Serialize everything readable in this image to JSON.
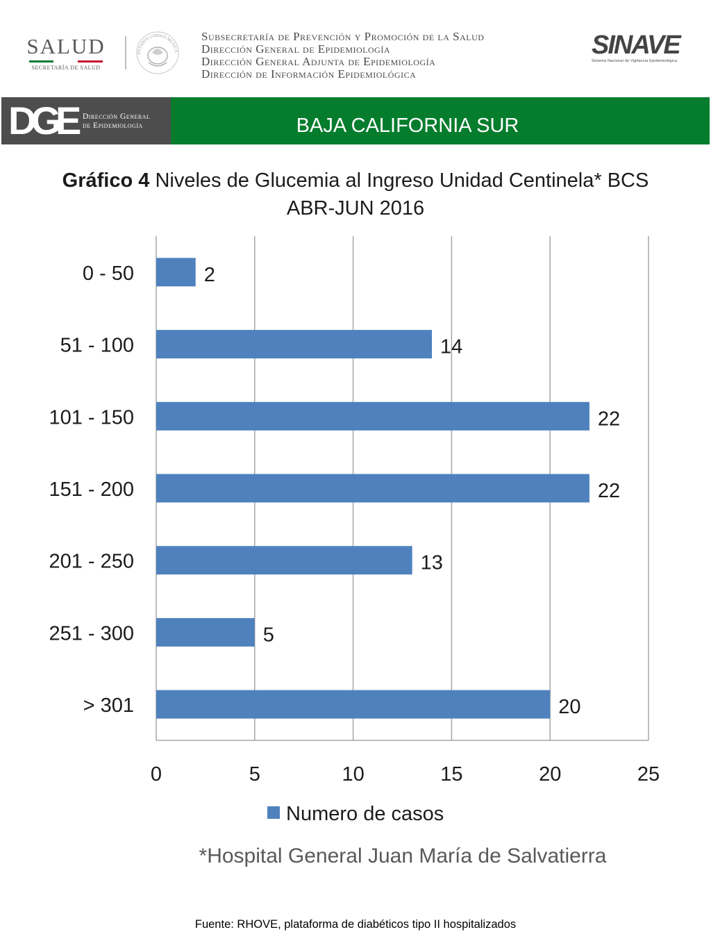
{
  "header": {
    "salud_word": "SALUD",
    "salud_sub": "SECRETARÍA DE SALUD",
    "seal_text": "ESTADOS UNIDOS MEXICANOS",
    "lines": [
      "Subsecretaría de Prevención y Promoción de la Salud",
      "Dirección General de Epidemiología",
      "Dirección General Adjunta de Epidemiología",
      "Dirección de Información Epidemiológica"
    ],
    "sinave_word": "SINAVE",
    "sinave_sub": "Sistema Nacional de Vigilancia Epidemiológica"
  },
  "banner": {
    "dge_mark": "DGE",
    "dge_line1": "Dirección General",
    "dge_line2": "de Epidemiología",
    "region": "BAJA CALIFORNIA SUR",
    "green": "#067d2d",
    "dark": "#4d4d4d"
  },
  "chart_title": {
    "bold": "Gráfico 4",
    "rest": " Niveles de Glucemia al Ingreso Unidad Centinela* BCS",
    "line2": "ABR-JUN 2016"
  },
  "chart_data": {
    "type": "bar",
    "orientation": "horizontal",
    "categories": [
      "0 - 50",
      "51 - 100",
      "101 - 150",
      "151 - 200",
      "201 - 250",
      "251 - 300",
      "> 301"
    ],
    "series": [
      {
        "name": "Numero de casos",
        "values": [
          2,
          14,
          22,
          22,
          13,
          5,
          20
        ],
        "color": "#4f81bd"
      }
    ],
    "xlim": [
      0,
      25
    ],
    "xticks": [
      0,
      5,
      10,
      15,
      20,
      25
    ],
    "data_labels": true,
    "grid": "vertical",
    "legend": "bottom"
  },
  "footnote": "*Hospital General Juan María de Salvatierra",
  "source": "Fuente: RHOVE, plataforma de diabéticos tipo II hospitalizados"
}
